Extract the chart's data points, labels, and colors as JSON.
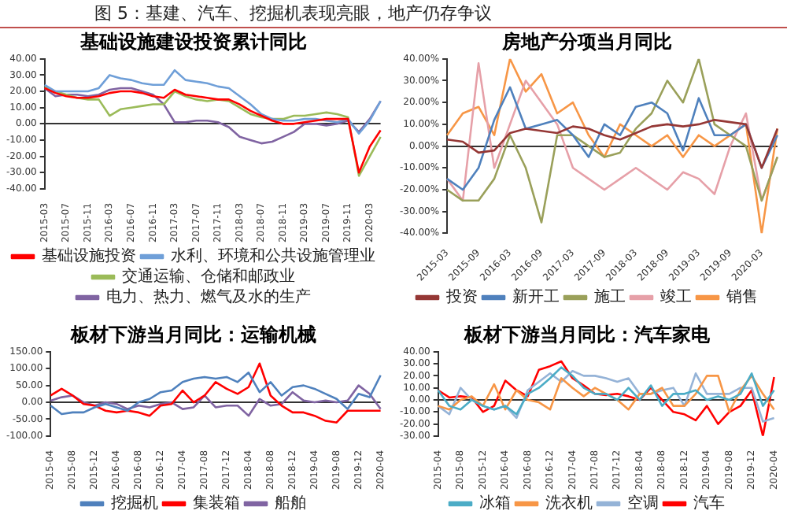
{
  "chart_data": [
    {
      "type": "line",
      "title": "基础设施建设投资累计同比",
      "annotations": [
        "图 5：基建、汽车、挖掘机表现亮眼，地产仍存争议"
      ],
      "categories": [
        "2015-03",
        null,
        "2015-07",
        null,
        "2015-11",
        null,
        "2016-03",
        null,
        "2016-07",
        null,
        "2016-11",
        null,
        "2017-03",
        null,
        "2017-07",
        null,
        "2017-11",
        null,
        "2018-03",
        null,
        "2018-07",
        null,
        "2018-11",
        null,
        "2019-03",
        null,
        "2019-07",
        null,
        "2019-11",
        null,
        "2020-03",
        null
      ],
      "series": [
        {
          "name": "基础设施投资",
          "color": "#ff0000",
          "values": [
            22,
            19,
            17,
            16,
            16,
            17,
            19,
            20,
            20,
            19,
            17,
            16,
            21,
            18,
            17,
            16,
            15,
            15,
            12,
            8,
            5,
            2,
            0,
            0,
            1,
            2,
            3,
            3,
            3,
            -30,
            -14,
            -4
          ]
        },
        {
          "name": "水利、环境和公共设施管理业",
          "color": "#6f9fd8",
          "values": [
            24,
            20,
            20,
            20,
            20,
            22,
            30,
            28,
            27,
            25,
            24,
            24,
            33,
            27,
            26,
            25,
            23,
            22,
            17,
            12,
            6,
            3,
            2,
            2,
            3,
            3,
            2,
            1,
            3,
            -6,
            2,
            14
          ]
        },
        {
          "name": "交通运输、仓储和邮政业",
          "color": "#9bbb59",
          "values": [
            23,
            20,
            18,
            16,
            15,
            15,
            5,
            9,
            10,
            11,
            12,
            12,
            20,
            17,
            15,
            14,
            15,
            14,
            10,
            6,
            4,
            3,
            3,
            5,
            5,
            6,
            7,
            6,
            4,
            -32,
            -20,
            -8
          ]
        },
        {
          "name": "电力、热力、燃气及水的生产",
          "color": "#8064a2",
          "values": [
            22,
            17,
            18,
            18,
            17,
            18,
            21,
            22,
            22,
            20,
            18,
            12,
            1,
            1,
            2,
            2,
            1,
            -2,
            -8,
            -10,
            -12,
            -11,
            -8,
            -5,
            0,
            0,
            -1,
            0,
            2,
            -5,
            3,
            14
          ]
        }
      ],
      "ylim": [
        -40,
        40
      ],
      "yticks": [
        {
          "value": -40,
          "label": "-40.00"
        },
        {
          "value": -30,
          "label": "-30.00"
        },
        {
          "value": -20,
          "label": "-20.00"
        },
        {
          "value": -10,
          "label": "-10.00"
        },
        {
          "value": 0,
          "label": "0.00"
        },
        {
          "value": 10,
          "label": "10.00"
        },
        {
          "value": 20,
          "label": "20.00"
        },
        {
          "value": 30,
          "label": "30.00"
        },
        {
          "value": 40,
          "label": "40.00"
        }
      ],
      "legend": "bottom"
    },
    {
      "type": "line",
      "title": "房地产分项当月同比",
      "categories": [
        "2015-03",
        null,
        "2015-09",
        null,
        "2016-03",
        null,
        "2016-09",
        null,
        "2017-03",
        null,
        "2017-09",
        null,
        "2018-03",
        null,
        "2018-09",
        null,
        "2019-03",
        null,
        "2019-09",
        null,
        "2020-03",
        null
      ],
      "series": [
        {
          "name": "投资",
          "color": "#953735",
          "values": [
            3,
            2,
            -3,
            -2,
            6,
            8,
            7,
            6,
            9,
            8,
            5,
            3,
            6,
            9,
            10,
            9,
            10,
            12,
            11,
            10,
            -10,
            8
          ]
        },
        {
          "name": "新开工",
          "color": "#4f81bd",
          "values": [
            -15,
            -20,
            -10,
            12,
            27,
            8,
            10,
            12,
            5,
            -5,
            10,
            5,
            18,
            20,
            15,
            -2,
            22,
            5,
            5,
            10,
            -10,
            5
          ]
        },
        {
          "name": "施工",
          "color": "#9aa05a",
          "values": [
            -20,
            -25,
            -25,
            -15,
            5,
            -10,
            -35,
            5,
            5,
            0,
            -5,
            -3,
            8,
            15,
            30,
            20,
            40,
            10,
            5,
            0,
            -25,
            -5
          ]
        },
        {
          "name": "竣工",
          "color": "#e6a0a8",
          "values": [
            -15,
            -25,
            38,
            -10,
            10,
            30,
            20,
            10,
            -10,
            -15,
            -20,
            -15,
            -10,
            -15,
            -20,
            -12,
            -15,
            -22,
            0,
            15,
            -25,
            -5
          ]
        },
        {
          "name": "销售",
          "color": "#f79646",
          "values": [
            5,
            15,
            18,
            5,
            40,
            25,
            33,
            15,
            20,
            5,
            -5,
            10,
            5,
            0,
            5,
            -5,
            5,
            0,
            5,
            10,
            -40,
            8
          ]
        }
      ],
      "ylim": [
        -40,
        40
      ],
      "yticks": [
        {
          "value": -40,
          "label": "-40.00%"
        },
        {
          "value": -30,
          "label": "-30.00%"
        },
        {
          "value": -20,
          "label": "-20.00%"
        },
        {
          "value": -10,
          "label": "-10.00%"
        },
        {
          "value": 0,
          "label": "0.00%"
        },
        {
          "value": 10,
          "label": "10.00%"
        },
        {
          "value": 20,
          "label": "20.00%"
        },
        {
          "value": 30,
          "label": "30.00%"
        },
        {
          "value": 40,
          "label": "40.00%"
        }
      ],
      "legend": "bottom"
    },
    {
      "type": "line",
      "title": "板材下游当月同比：运输机械",
      "categories": [
        "2015-04",
        null,
        "2015-08",
        null,
        "2015-12",
        null,
        "2016-04",
        null,
        "2016-08",
        null,
        "2016-12",
        null,
        "2017-04",
        null,
        "2017-08",
        null,
        "2017-12",
        null,
        "2018-04",
        null,
        "2018-08",
        null,
        "2018-12",
        null,
        "2019-04",
        null,
        "2019-08",
        null,
        "2019-12",
        null,
        "2020-04"
      ],
      "series": [
        {
          "name": "挖掘机",
          "color": "#4f81bd",
          "values": [
            -10,
            -35,
            -30,
            -30,
            -15,
            -5,
            -15,
            -25,
            0,
            10,
            30,
            35,
            60,
            70,
            75,
            70,
            75,
            60,
            88,
            30,
            60,
            20,
            45,
            50,
            40,
            25,
            10,
            -20,
            25,
            15,
            80
          ]
        },
        {
          "name": "集装箱",
          "color": "#ff0000",
          "values": [
            20,
            40,
            20,
            -5,
            -10,
            -25,
            -30,
            -25,
            -30,
            -40,
            -10,
            -5,
            35,
            0,
            20,
            60,
            40,
            25,
            45,
            115,
            20,
            -10,
            -30,
            -30,
            -40,
            -55,
            -60,
            -25,
            -25,
            -25,
            -25
          ]
        },
        {
          "name": "船舶",
          "color": "#8064a2",
          "values": [
            5,
            15,
            20,
            0,
            -10,
            0,
            -5,
            -20,
            -10,
            -15,
            -5,
            0,
            -20,
            -15,
            20,
            -15,
            -10,
            -10,
            -40,
            10,
            -10,
            -5,
            30,
            5,
            0,
            5,
            0,
            5,
            50,
            25,
            -20
          ]
        }
      ],
      "ylim": [
        -100,
        150
      ],
      "yticks": [
        {
          "value": -100,
          "label": "-100.00"
        },
        {
          "value": -50,
          "label": "-50.00"
        },
        {
          "value": 0,
          "label": "0.00"
        },
        {
          "value": 50,
          "label": "50.00"
        },
        {
          "value": 100,
          "label": "100.00"
        },
        {
          "value": 150,
          "label": "150.00"
        }
      ],
      "legend": "bottom"
    },
    {
      "type": "line",
      "title": "板材下游当月同比：汽车家电",
      "categories": [
        "2015-04",
        null,
        "2015-08",
        null,
        "2015-12",
        null,
        "2016-04",
        null,
        "2016-08",
        null,
        "2016-12",
        null,
        "2017-04",
        null,
        "2017-08",
        null,
        "2017-12",
        null,
        "2018-04",
        null,
        "2018-08",
        null,
        "2018-12",
        null,
        "2019-04",
        null,
        "2019-08",
        null,
        "2019-12",
        null,
        "2020-04"
      ],
      "series": [
        {
          "name": "冰箱",
          "color": "#4bacc6",
          "values": [
            8,
            -5,
            -8,
            0,
            -5,
            -8,
            -5,
            -12,
            5,
            10,
            18,
            27,
            20,
            10,
            5,
            5,
            0,
            10,
            0,
            12,
            -5,
            5,
            5,
            8,
            0,
            3,
            0,
            5,
            22,
            -5,
            8
          ]
        },
        {
          "name": "洗衣机",
          "color": "#f79646",
          "values": [
            -5,
            -8,
            0,
            3,
            -5,
            13,
            -8,
            8,
            0,
            -2,
            -8,
            18,
            10,
            3,
            10,
            5,
            0,
            -8,
            5,
            5,
            10,
            -5,
            -5,
            5,
            20,
            20,
            -10,
            8,
            20,
            5,
            -8
          ]
        },
        {
          "name": "空调",
          "color": "#95b3d7",
          "values": [
            -5,
            -12,
            10,
            0,
            -5,
            -8,
            -5,
            -15,
            8,
            15,
            22,
            15,
            24,
            20,
            20,
            18,
            15,
            18,
            5,
            5,
            8,
            10,
            -5,
            22,
            5,
            5,
            5,
            10,
            10,
            -18,
            -15
          ]
        },
        {
          "name": "汽车",
          "color": "#ff0000",
          "values": [
            8,
            2,
            3,
            2,
            -10,
            -5,
            16,
            8,
            3,
            25,
            28,
            32,
            18,
            12,
            5,
            4,
            5,
            3,
            0,
            10,
            0,
            -10,
            -12,
            -17,
            -5,
            -20,
            -10,
            -5,
            8,
            -30,
            19
          ]
        }
      ],
      "ylim": [
        -30,
        40
      ],
      "yticks": [
        {
          "value": -30,
          "label": "-30.00"
        },
        {
          "value": -20,
          "label": "-20.00"
        },
        {
          "value": -10,
          "label": "-10.00"
        },
        {
          "value": 0,
          "label": "0.00"
        },
        {
          "value": 10,
          "label": "10.00"
        },
        {
          "value": 20,
          "label": "20.00"
        },
        {
          "value": 30,
          "label": "30.00"
        },
        {
          "value": 40,
          "label": "40.00"
        }
      ],
      "legend": "bottom"
    }
  ]
}
